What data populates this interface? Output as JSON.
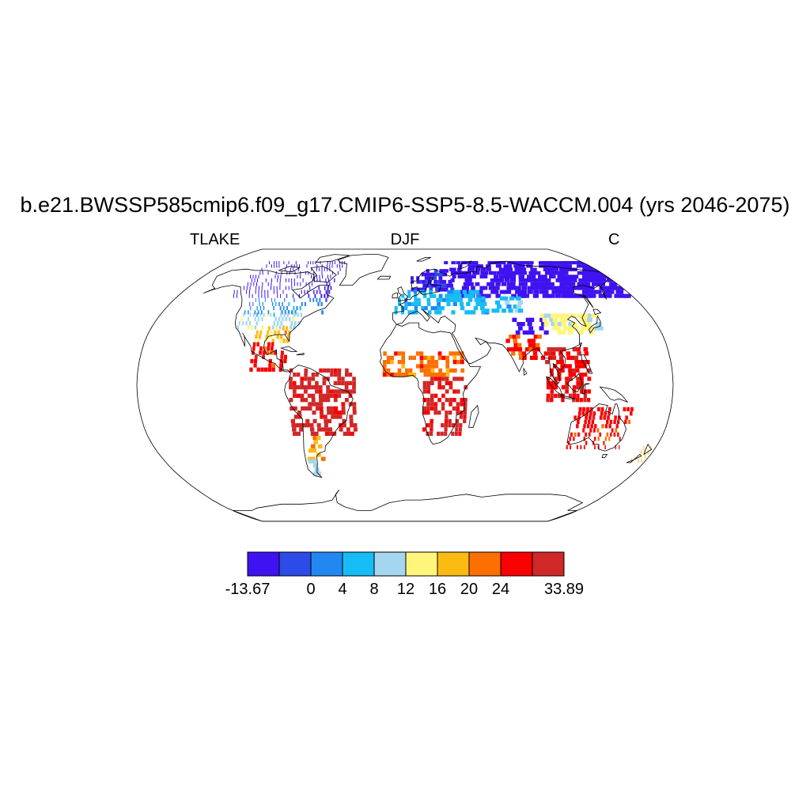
{
  "figure": {
    "title": "b.e21.BWSSP585cmip6.f09_g17.CMIP6-SSP5-8.5-WACCM.004 (yrs 2046-2075)",
    "left_string": "TLAKE",
    "center_string": "DJF",
    "right_string": "C"
  },
  "map": {
    "projection": "Robinson",
    "variable_field": "TLAKE",
    "coastlines": true,
    "grid": false
  },
  "colorbar": {
    "orientation": "horizontal",
    "placement": "below map",
    "colors": [
      "#3f12f2",
      "#2d4be6",
      "#2188f2",
      "#16bcf5",
      "#a4d6ef",
      "#fff57a",
      "#fcbb13",
      "#fc6f00",
      "#fa0000",
      "#d02828"
    ],
    "labels": [
      "-13.67",
      "",
      "0",
      "4",
      "8",
      "12",
      "16",
      "20",
      "24",
      "",
      "33.89"
    ]
  },
  "chart_data": {
    "type": "heatmap",
    "title": "b.e21.BWSSP585cmip6.f09_g17.CMIP6-SSP5-8.5-WACCM.004 (yrs 2046-2075)",
    "variable": "TLAKE",
    "season": "DJF",
    "units": "C",
    "range": [
      -13.67,
      33.89
    ],
    "contour_levels": [
      -13.67,
      -4,
      0,
      4,
      8,
      12,
      16,
      20,
      24,
      28,
      33.89
    ],
    "regions": [
      {
        "lon": [
          -140,
          -60
        ],
        "lat": [
          52,
          75
        ],
        "value": -10
      },
      {
        "lon": [
          -120,
          -60
        ],
        "lat": [
          42,
          52
        ],
        "value": 2
      },
      {
        "lon": [
          -120,
          -75
        ],
        "lat": [
          33,
          42
        ],
        "value": 10
      },
      {
        "lon": [
          -105,
          -80
        ],
        "lat": [
          25,
          33
        ],
        "value": 18
      },
      {
        "lon": [
          -105,
          -80
        ],
        "lat": [
          8,
          25
        ],
        "value": 26
      },
      {
        "lon": [
          -78,
          -35
        ],
        "lat": [
          -30,
          8
        ],
        "value": 30
      },
      {
        "lon": [
          -72,
          -60
        ],
        "lat": [
          -45,
          -30
        ],
        "value": 18
      },
      {
        "lon": [
          -72,
          -66
        ],
        "lat": [
          -54,
          -45
        ],
        "value": 10
      },
      {
        "lon": [
          5,
          40
        ],
        "lat": [
          56,
          70
        ],
        "value": -5
      },
      {
        "lon": [
          40,
          180
        ],
        "lat": [
          52,
          75
        ],
        "value": -11
      },
      {
        "lon": [
          -8,
          60
        ],
        "lat": [
          42,
          56
        ],
        "value": 5
      },
      {
        "lon": [
          60,
          90
        ],
        "lat": [
          43,
          52
        ],
        "value": 6
      },
      {
        "lon": [
          78,
          100
        ],
        "lat": [
          30,
          38
        ],
        "value": -10
      },
      {
        "lon": [
          100,
          140
        ],
        "lat": [
          30,
          42
        ],
        "value": 13
      },
      {
        "lon": [
          -15,
          40
        ],
        "lat": [
          5,
          18
        ],
        "value": 22
      },
      {
        "lon": [
          12,
          40
        ],
        "lat": [
          -30,
          5
        ],
        "value": 29
      },
      {
        "lon": [
          70,
          95
        ],
        "lat": [
          15,
          30
        ],
        "value": 25
      },
      {
        "lon": [
          95,
          125
        ],
        "lat": [
          -10,
          22
        ],
        "value": 27
      },
      {
        "lon": [
          115,
          153
        ],
        "lat": [
          -38,
          -15
        ],
        "value": 26
      },
      {
        "lon": [
          168,
          178
        ],
        "lat": [
          -46,
          -36
        ],
        "value": 18
      }
    ]
  }
}
